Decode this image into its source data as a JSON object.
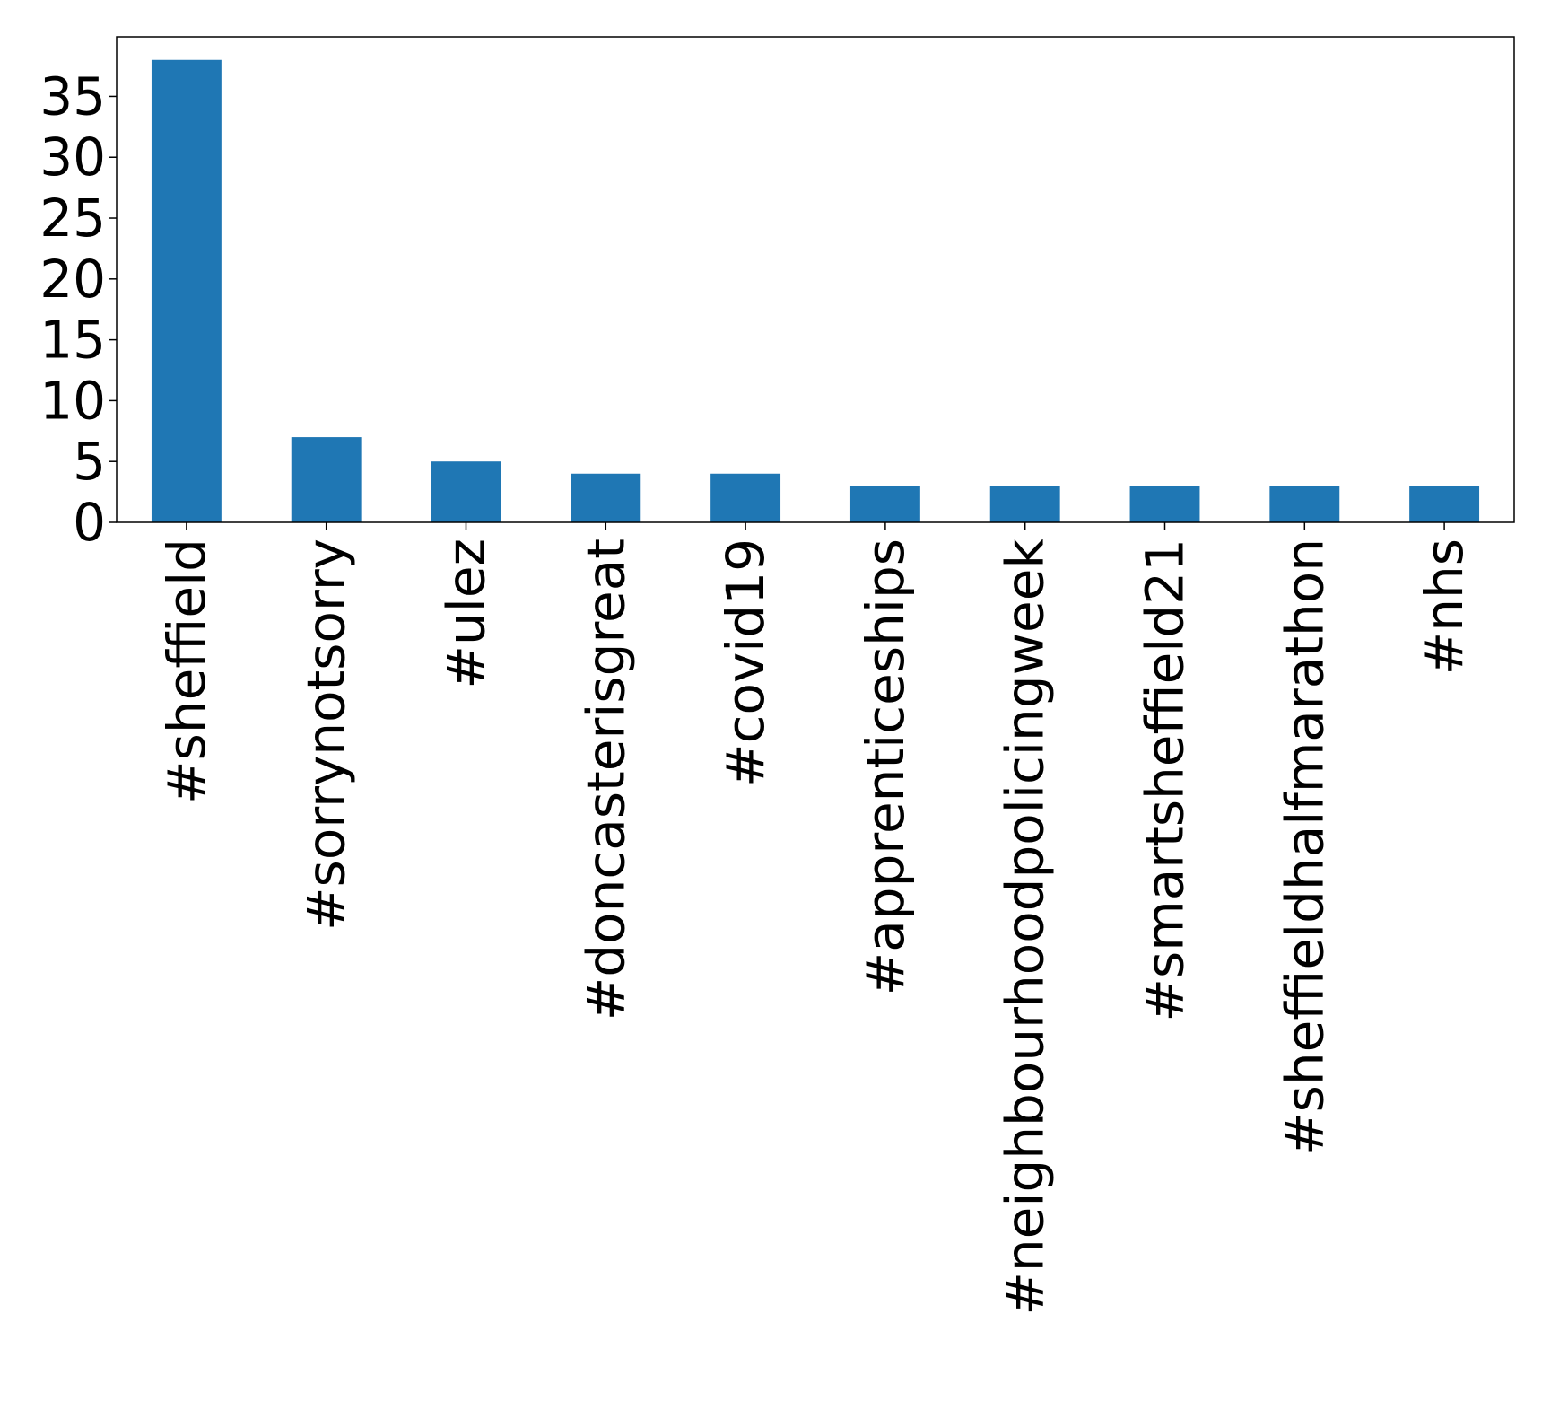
{
  "chart_data": {
    "type": "bar",
    "title": "",
    "xlabel": "",
    "ylabel": "",
    "categories": [
      "#sheffield",
      "#sorrynotsorry",
      "#ulez",
      "#doncasterisgreat",
      "#covid19",
      "#apprenticeships",
      "#neighbourhoodpolicingweek",
      "#smartsheffield21",
      "#sheffieldhalfmarathon",
      "#nhs"
    ],
    "values": [
      38,
      7,
      5,
      4,
      4,
      3,
      3,
      3,
      3,
      3
    ],
    "ylim": [
      0,
      39.9
    ],
    "yticks": [
      0,
      5,
      10,
      15,
      20,
      25,
      30,
      35
    ],
    "grid": false,
    "legend": "none",
    "bar_color": "#1f77b4"
  }
}
